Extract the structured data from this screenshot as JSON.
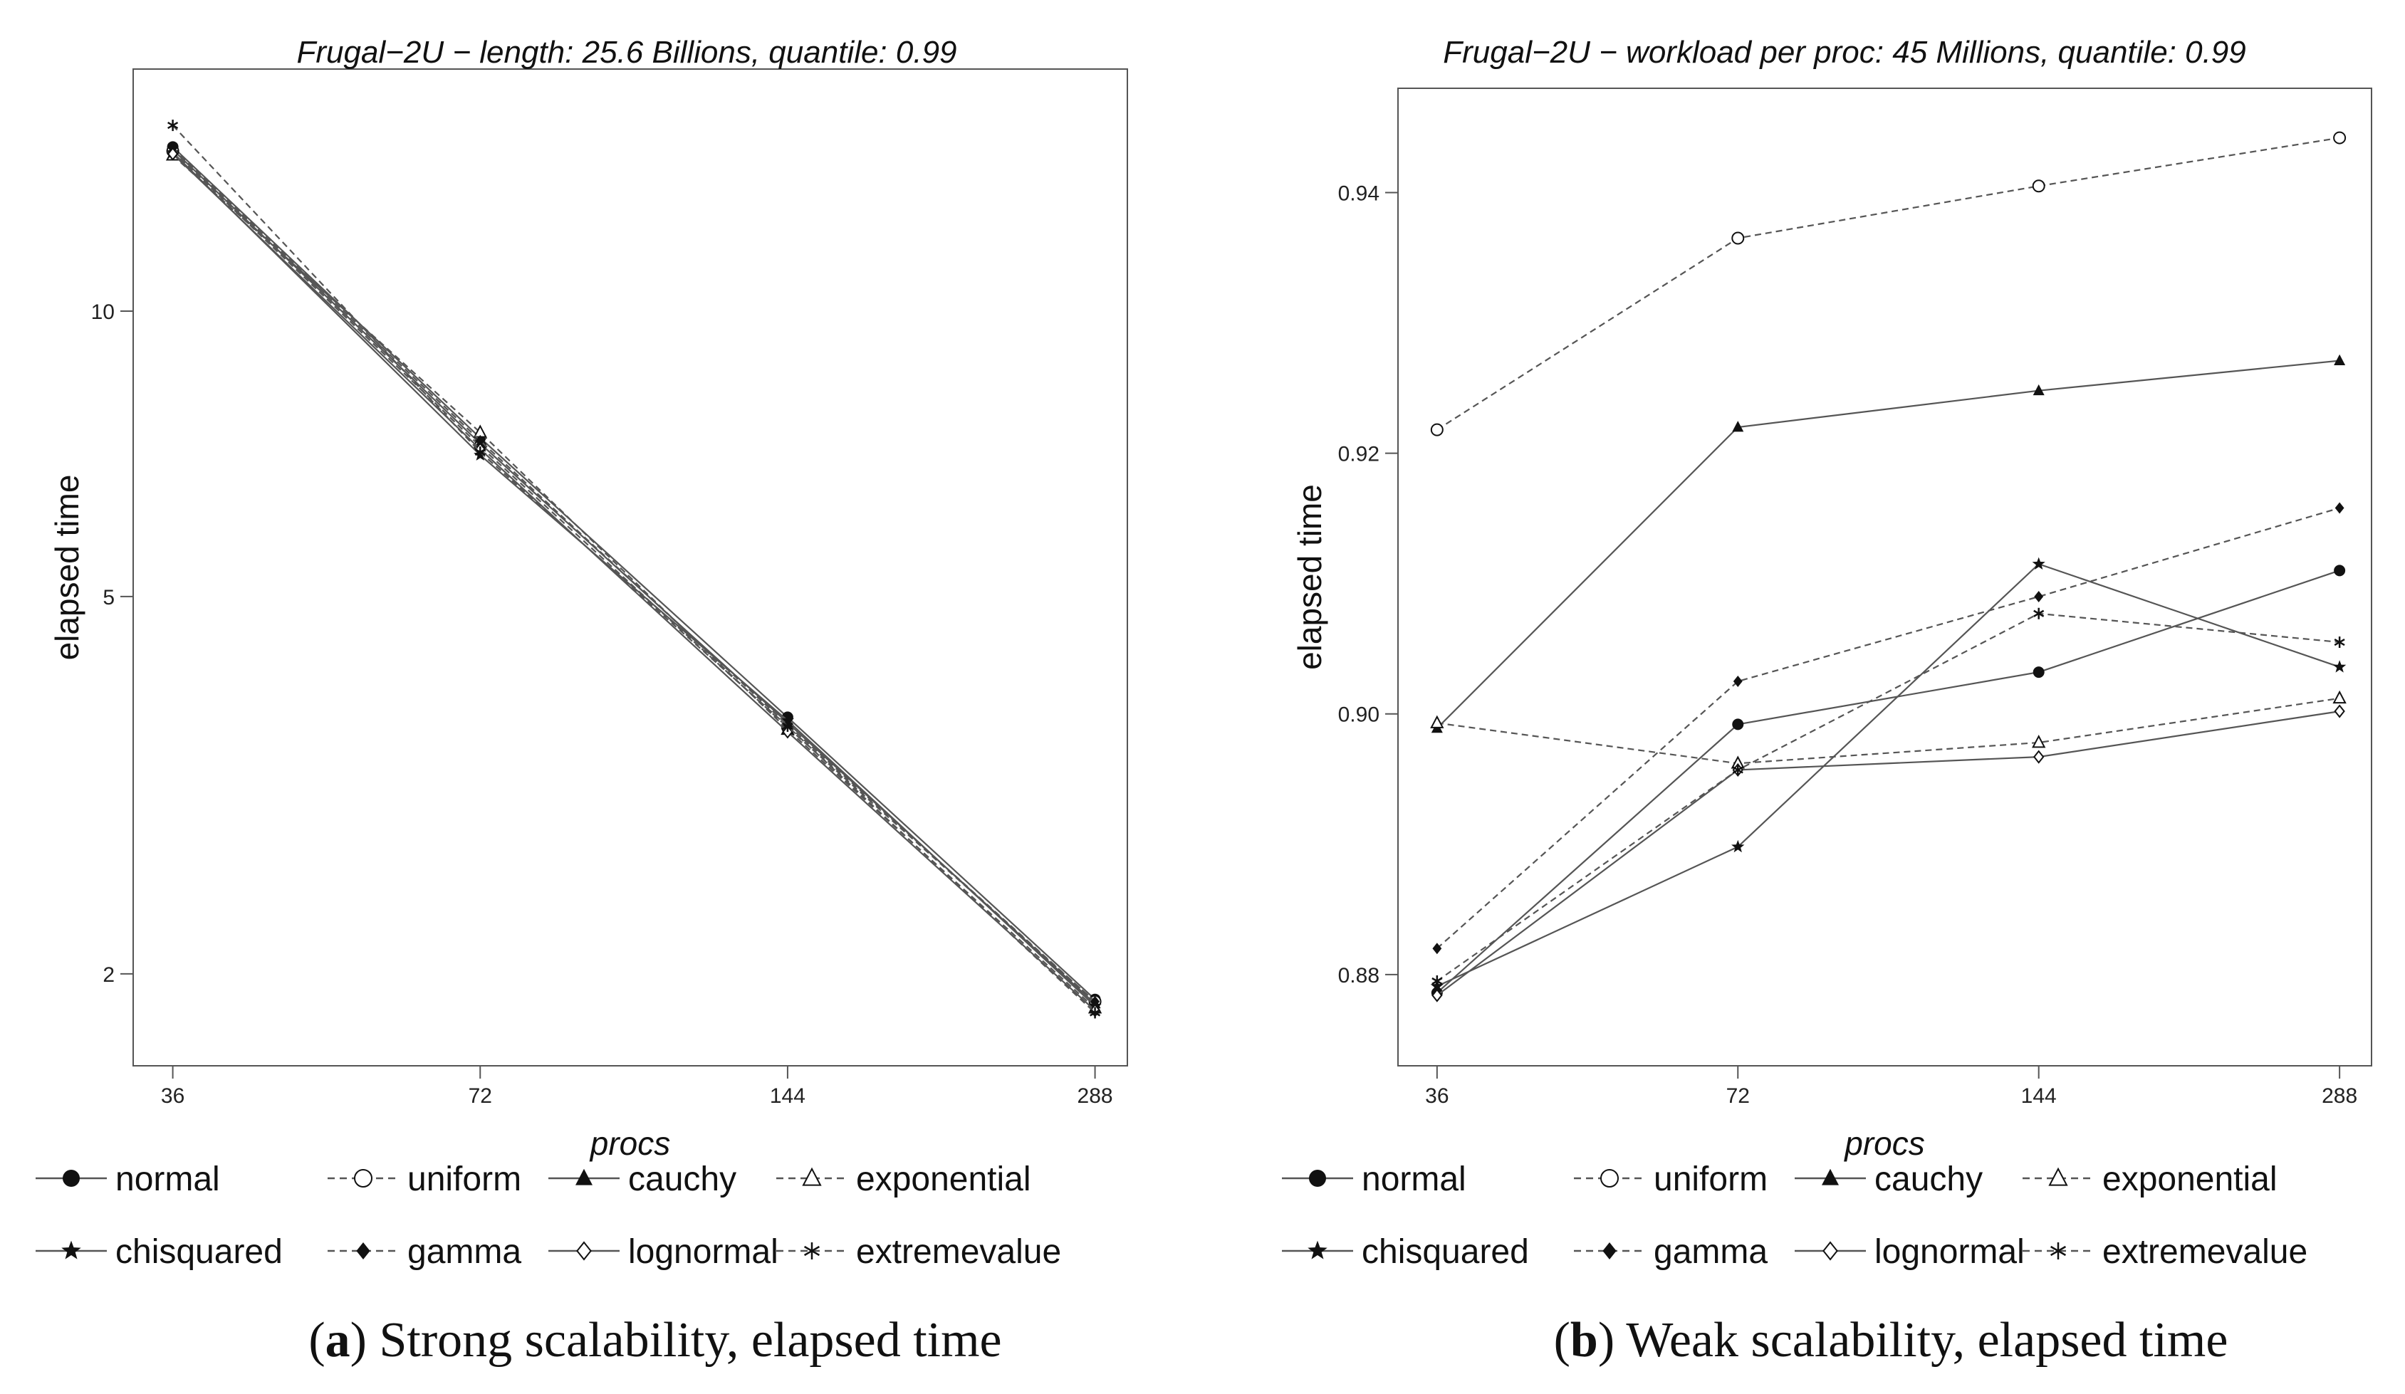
{
  "chart_data": [
    {
      "type": "line",
      "panel": "a",
      "title": "Frugal−2U − length: 25.6 Billions, quantile: 0.99",
      "xlabel": "procs",
      "ylabel": "elapsed time",
      "x_scale": "log",
      "y_scale": "log",
      "x": [
        36,
        72,
        144,
        288
      ],
      "x_tick_labels": [
        "36",
        "72",
        "144",
        "288"
      ],
      "y_ticks": [
        2,
        5,
        10
      ],
      "y_tick_labels": [
        "2",
        "5",
        "10"
      ],
      "xlim": [
        34,
        300
      ],
      "ylim": [
        1.6,
        18
      ],
      "caption_bold": "a",
      "caption_text": " Strong scalability, elapsed time",
      "series": [
        {
          "name": "normal",
          "values": [
            14.9,
            7.35,
            3.73,
            1.88
          ]
        },
        {
          "name": "uniform",
          "values": [
            14.75,
            7.2,
            3.64,
            1.87
          ]
        },
        {
          "name": "cauchy",
          "values": [
            14.8,
            7.25,
            3.68,
            1.86
          ]
        },
        {
          "name": "exponential",
          "values": [
            14.6,
            7.45,
            3.62,
            1.84
          ]
        },
        {
          "name": "chisquared",
          "values": [
            14.7,
            7.05,
            3.7,
            1.85
          ]
        },
        {
          "name": "gamma",
          "values": [
            14.85,
            7.3,
            3.66,
            1.87
          ]
        },
        {
          "name": "lognormal",
          "values": [
            14.65,
            7.15,
            3.6,
            1.83
          ]
        },
        {
          "name": "extremevalue",
          "values": [
            15.7,
            7.1,
            3.65,
            1.82
          ]
        }
      ]
    },
    {
      "type": "line",
      "panel": "b",
      "title": "Frugal−2U − workload per proc: 45 Millions, quantile: 0.99",
      "xlabel": "procs",
      "ylabel": "elapsed time",
      "x_scale": "log",
      "y_scale": "linear",
      "x": [
        36,
        72,
        144,
        288
      ],
      "x_tick_labels": [
        "36",
        "72",
        "144",
        "288"
      ],
      "y_ticks": [
        0.88,
        0.9,
        0.92,
        0.94
      ],
      "y_tick_labels": [
        "0.88",
        "0.90",
        "0.92",
        "0.94"
      ],
      "xlim": [
        34,
        300
      ],
      "ylim": [
        0.873,
        0.948
      ],
      "caption_bold": "b",
      "caption_text": " Weak scalability, elapsed time",
      "series": [
        {
          "name": "normal",
          "values": [
            0.8786,
            0.8992,
            0.9032,
            0.911
          ]
        },
        {
          "name": "uniform",
          "values": [
            0.9218,
            0.9365,
            0.9405,
            0.9442
          ]
        },
        {
          "name": "cauchy",
          "values": [
            0.8989,
            0.922,
            0.9248,
            0.9271
          ]
        },
        {
          "name": "exponential",
          "values": [
            0.8993,
            0.8962,
            0.8978,
            0.9012
          ]
        },
        {
          "name": "chisquared",
          "values": [
            0.8791,
            0.8898,
            0.9115,
            0.9036
          ]
        },
        {
          "name": "gamma",
          "values": [
            0.882,
            0.9025,
            0.909,
            0.9158
          ]
        },
        {
          "name": "lognormal",
          "values": [
            0.8784,
            0.8957,
            0.8967,
            0.9002
          ]
        },
        {
          "name": "extremevalue",
          "values": [
            0.8795,
            0.8957,
            0.9077,
            0.9055
          ]
        }
      ]
    }
  ],
  "legend": {
    "items": [
      {
        "name": "normal",
        "marker": "filled-circle",
        "dash": "solid"
      },
      {
        "name": "uniform",
        "marker": "open-circle",
        "dash": "dashed"
      },
      {
        "name": "cauchy",
        "marker": "filled-triangle",
        "dash": "solid"
      },
      {
        "name": "exponential",
        "marker": "open-triangle",
        "dash": "dashed"
      },
      {
        "name": "chisquared",
        "marker": "filled-star",
        "dash": "solid"
      },
      {
        "name": "gamma",
        "marker": "filled-diamond",
        "dash": "dashed"
      },
      {
        "name": "lognormal",
        "marker": "open-diamond",
        "dash": "solid"
      },
      {
        "name": "extremevalue",
        "marker": "asterisk",
        "dash": "dashed"
      }
    ]
  },
  "colors": {
    "line": "#555555",
    "marker": "#111111",
    "frame": "#555555"
  }
}
